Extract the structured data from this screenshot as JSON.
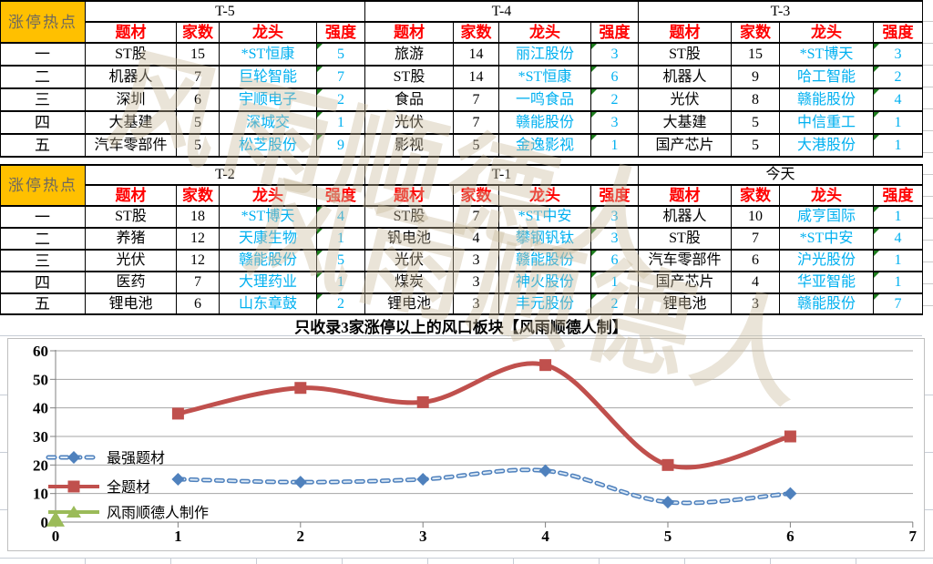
{
  "corner_label": "涨停热点",
  "row_labels": [
    "一",
    "二",
    "三",
    "四",
    "五"
  ],
  "column_headers": [
    "题材",
    "家数",
    "龙头",
    "强度"
  ],
  "note": "只收录3家涨停以上的风口板块【风雨顺德人制】",
  "watermark_text": "风雨顺德人",
  "colors": {
    "header_red": "#FF0000",
    "stock_link_blue": "#00B0F0",
    "corner_bg": "#FFC000",
    "corner_text": "#6E685E",
    "chart_red": "#C0504D",
    "chart_blue": "#4F81BD",
    "chart_green": "#9BBB59",
    "flag_green": "#1e7d1e"
  },
  "blocks": [
    {
      "tables": [
        {
          "title": "T-5",
          "rows": [
            [
              "ST股",
              "15",
              "*ST恒康",
              "5"
            ],
            [
              "机器人",
              "7",
              "巨轮智能",
              "7"
            ],
            [
              "深圳",
              "6",
              "宇顺电子",
              "2"
            ],
            [
              "大基建",
              "5",
              "深城交",
              "1"
            ],
            [
              "汽车零部件",
              "5",
              "松芝股份",
              "9"
            ]
          ]
        },
        {
          "title": "T-4",
          "rows": [
            [
              "旅游",
              "14",
              "丽江股份",
              "3"
            ],
            [
              "ST股",
              "14",
              "*ST恒康",
              "6"
            ],
            [
              "食品",
              "7",
              "一鸣食品",
              "2"
            ],
            [
              "光伏",
              "7",
              "赣能股份",
              "3"
            ],
            [
              "影视",
              "5",
              "金逸影视",
              "1"
            ]
          ]
        },
        {
          "title": "T-3",
          "rows": [
            [
              "ST股",
              "15",
              "*ST博天",
              "3"
            ],
            [
              "机器人",
              "9",
              "哈工智能",
              "2"
            ],
            [
              "光伏",
              "8",
              "赣能股份",
              "4"
            ],
            [
              "大基建",
              "5",
              "中信重工",
              "1"
            ],
            [
              "国产芯片",
              "5",
              "大港股份",
              "1"
            ]
          ]
        }
      ]
    },
    {
      "tables": [
        {
          "title": "T-2",
          "rows": [
            [
              "ST股",
              "18",
              "*ST博天",
              "4"
            ],
            [
              "养猪",
              "12",
              "天康生物",
              "1"
            ],
            [
              "光伏",
              "12",
              "赣能股份",
              "5"
            ],
            [
              "医药",
              "7",
              "大理药业",
              "1"
            ],
            [
              "锂电池",
              "6",
              "山东章鼓",
              "2"
            ]
          ]
        },
        {
          "title": "T-1",
          "rows": [
            [
              "ST股",
              "7",
              "*ST中安",
              "3"
            ],
            [
              "钒电池",
              "4",
              "攀钢钒钛",
              "3"
            ],
            [
              "光伏",
              "3",
              "赣能股份",
              "6"
            ],
            [
              "煤炭",
              "3",
              "神火股份",
              "1"
            ],
            [
              "锂电池",
              "3",
              "丰元股份",
              "2"
            ]
          ]
        },
        {
          "title": "今天",
          "rows": [
            [
              "机器人",
              "10",
              "咸亨国际",
              "1"
            ],
            [
              "ST股",
              "7",
              "*ST中安",
              "4"
            ],
            [
              "汽车零部件",
              "6",
              "沪光股份",
              "1"
            ],
            [
              "国产芯片",
              "4",
              "华亚智能",
              "1"
            ],
            [
              "锂电池",
              "3",
              "赣能股份",
              "7"
            ]
          ]
        }
      ]
    }
  ],
  "chart_data": {
    "type": "line",
    "title": "",
    "xlabel": "",
    "ylabel": "",
    "xlim": [
      0,
      7
    ],
    "ylim": [
      0,
      60
    ],
    "xtick_step": 1,
    "ytick_step": 10,
    "grid": true,
    "legend_position": "inside-left",
    "series": [
      {
        "name": "最强题材",
        "x": [
          1,
          2,
          3,
          4,
          5,
          6
        ],
        "values": [
          15,
          14,
          15,
          18,
          7,
          10
        ],
        "color": "#4F81BD",
        "line_color": "#6699CC",
        "marker": "diamond",
        "line_style": "dashed"
      },
      {
        "name": "全题材",
        "x": [
          1,
          2,
          3,
          4,
          5,
          6
        ],
        "values": [
          38,
          47,
          42,
          55,
          20,
          30
        ],
        "color": "#C0504D",
        "line_color": "#C0504D",
        "marker": "square",
        "line_style": "solid"
      },
      {
        "name": "风雨顺德人制作",
        "x": [
          0
        ],
        "values": [
          1
        ],
        "color": "#9BBB59",
        "line_color": "#9BBB59",
        "marker": "triangle",
        "line_style": "solid"
      }
    ]
  }
}
